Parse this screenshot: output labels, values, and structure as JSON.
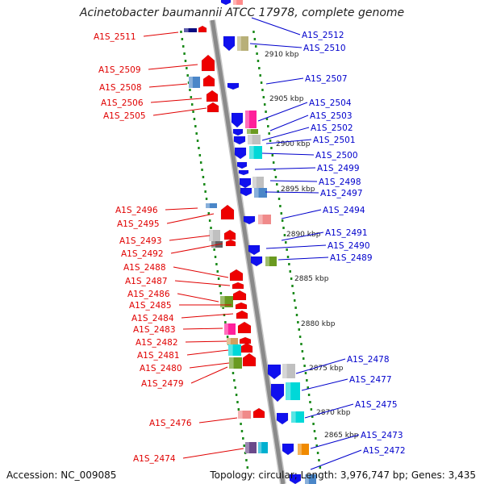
{
  "title": "Acinetobacter baumannii ATCC 17978, complete genome",
  "footer": {
    "accession": "Accession: NC_009085",
    "topology": "Topology: circular; Length: 3,976,747 bp; Genes: 3,435"
  },
  "colors": {
    "forward_label": "#e00000",
    "reverse_label": "#0000cc",
    "backbone": "#8a8a8a",
    "guide_dots": "#1a8a1a"
  },
  "scale": {
    "unit": "kbp",
    "ticks": [
      "2910 kbp",
      "2905 kbp",
      "2900 kbp",
      "2895 kbp",
      "2890 kbp",
      "2885 kbp",
      "2880 kbp",
      "2875 kbp",
      "2870 kbp",
      "2865 kbp"
    ]
  },
  "forward_genes": [
    "A1S_2511",
    "A1S_2509",
    "A1S_2508",
    "A1S_2506",
    "A1S_2505",
    "A1S_2496",
    "A1S_2495",
    "A1S_2493",
    "A1S_2492",
    "A1S_2488",
    "A1S_2487",
    "A1S_2486",
    "A1S_2485",
    "A1S_2484",
    "A1S_2483",
    "A1S_2482",
    "A1S_2481",
    "A1S_2480",
    "A1S_2479",
    "A1S_2476",
    "A1S_2474"
  ],
  "reverse_genes": [
    "A1S_2512",
    "A1S_2510",
    "A1S_2507",
    "A1S_2504",
    "A1S_2503",
    "A1S_2502",
    "A1S_2501",
    "A1S_2500",
    "A1S_2499",
    "A1S_2498",
    "A1S_2497",
    "A1S_2494",
    "A1S_2491",
    "A1S_2490",
    "A1S_2489",
    "A1S_2478",
    "A1S_2477",
    "A1S_2475",
    "A1S_2473",
    "A1S_2472"
  ]
}
